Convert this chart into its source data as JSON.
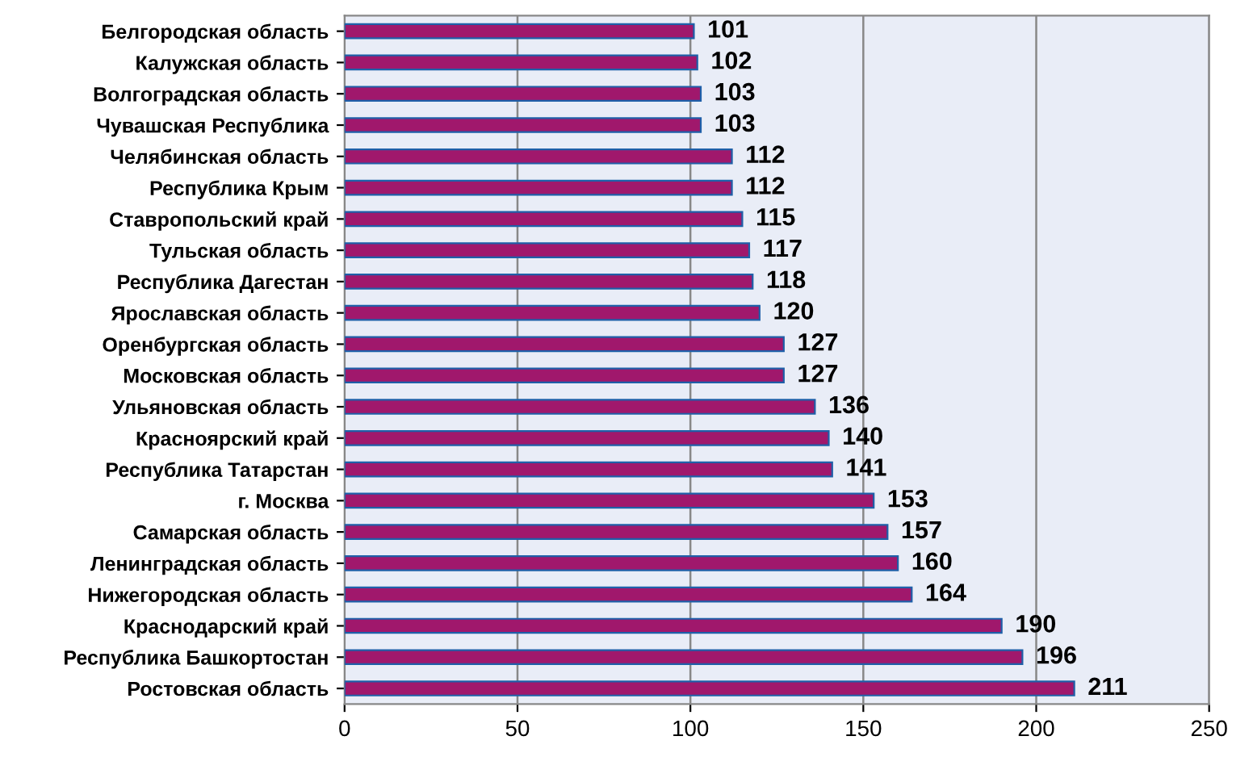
{
  "chart_data": {
    "type": "bar",
    "orientation": "horizontal",
    "categories": [
      "Белгородская область",
      "Калужская область",
      "Волгоградская область",
      "Чувашская Республика",
      "Челябинская область",
      "Республика Крым",
      "Ставропольский край",
      "Тульская область",
      "Республика Дагестан",
      "Ярославская область",
      "Оренбургская область",
      "Московская область",
      "Ульяновская область",
      "Красноярский край",
      "Республика Татарстан",
      "г. Москва",
      "Самарская область",
      "Ленинградская область",
      "Нижегородская область",
      "Краснодарский край",
      "Республика Башкортостан",
      "Ростовская область"
    ],
    "values": [
      101,
      102,
      103,
      103,
      112,
      112,
      115,
      117,
      118,
      120,
      127,
      127,
      136,
      140,
      141,
      153,
      157,
      160,
      164,
      190,
      196,
      211
    ],
    "color": "#a0186c",
    "xlim": [
      0,
      250
    ],
    "xticks": [
      0,
      50,
      100,
      150,
      200,
      250
    ],
    "grid": "x",
    "data_labels": true,
    "legend": false
  }
}
